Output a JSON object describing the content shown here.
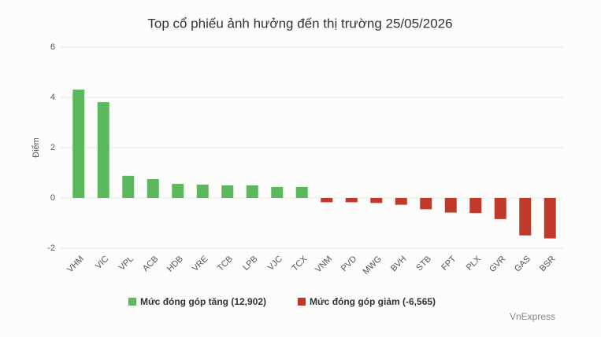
{
  "chart_data": {
    "type": "bar",
    "title": "Top cổ phiếu ảnh hưởng đến thị trường 25/05/2026",
    "y_label": "Điểm",
    "source": "VnExpress",
    "categories": [
      "VHM",
      "VIC",
      "VPL",
      "ACB",
      "HDB",
      "VRE",
      "TCB",
      "LPB",
      "VJC",
      "TCX",
      "VNM",
      "PVD",
      "MWG",
      "BVH",
      "STB",
      "FPT",
      "PLX",
      "GVR",
      "GAS",
      "BSR"
    ],
    "series": [
      {
        "name": "Mức đóng góp tăng (12,902)",
        "color": "#5cb85c",
        "values": [
          4.31,
          3.81,
          0.88,
          0.75,
          0.56,
          0.53,
          0.5,
          0.5,
          0.44,
          0.44,
          null,
          null,
          null,
          null,
          null,
          null,
          null,
          null,
          null,
          null
        ]
      },
      {
        "name": "Mức đóng góp giảm (-6,565)",
        "color": "#c0392b",
        "values": [
          null,
          null,
          null,
          null,
          null,
          null,
          null,
          null,
          null,
          null,
          -0.17,
          -0.17,
          -0.2,
          -0.27,
          -0.45,
          -0.58,
          -0.6,
          -0.84,
          -1.49,
          -1.61
        ]
      }
    ],
    "ylim": [
      -2,
      6
    ],
    "yticks": [
      -2,
      0,
      2,
      4,
      6
    ],
    "grid": true
  }
}
